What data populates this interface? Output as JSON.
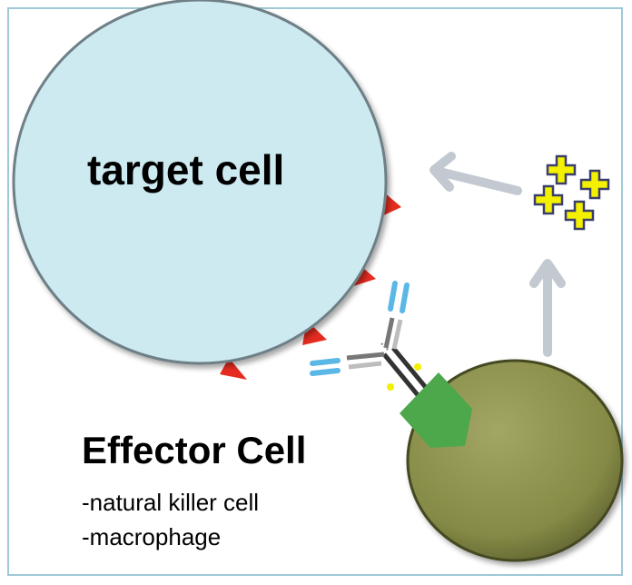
{
  "diagram": {
    "target_cell_label": "target cell",
    "effector_cell_label": "Effector Cell",
    "effector_types": [
      "-natural killer cell",
      "-macrophage"
    ],
    "colors": {
      "target_cell_fill": "#cdeaf1",
      "effector_cell_fill": "#8c8f4e",
      "antigen": "#e52b1f",
      "receptor": "#4ca84a",
      "antibody_light": "#5bb8e6",
      "antibody_heavy": "#7a7a7a",
      "cytokine_fill": "#f3f000",
      "arrow": "#c3c9d0",
      "frame": "#9fc9d6"
    }
  }
}
